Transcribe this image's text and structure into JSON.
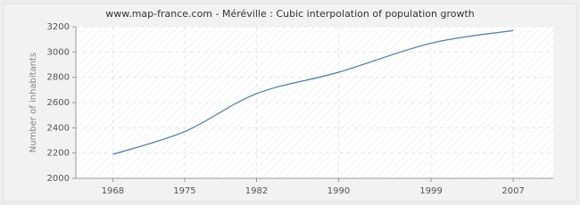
{
  "chart_data": {
    "type": "line",
    "title": "www.map-france.com - Méréville : Cubic interpolation of population growth",
    "y_label": "Number of inhabitants",
    "x": [
      1968,
      1975,
      1982,
      1990,
      1999,
      2007
    ],
    "series": [
      {
        "name": "Population",
        "color": "#4a7aa8",
        "values": [
          2190,
          2370,
          2670,
          2840,
          3070,
          3170
        ]
      }
    ],
    "xlim": [
      1964.4,
      2010.9
    ],
    "xticks": [
      1968,
      1975,
      1982,
      1990,
      1999,
      2007
    ],
    "ylim": [
      2000,
      3200
    ],
    "yticks": [
      2000,
      2200,
      2400,
      2600,
      2800,
      3000,
      3200
    ],
    "grid": true
  }
}
